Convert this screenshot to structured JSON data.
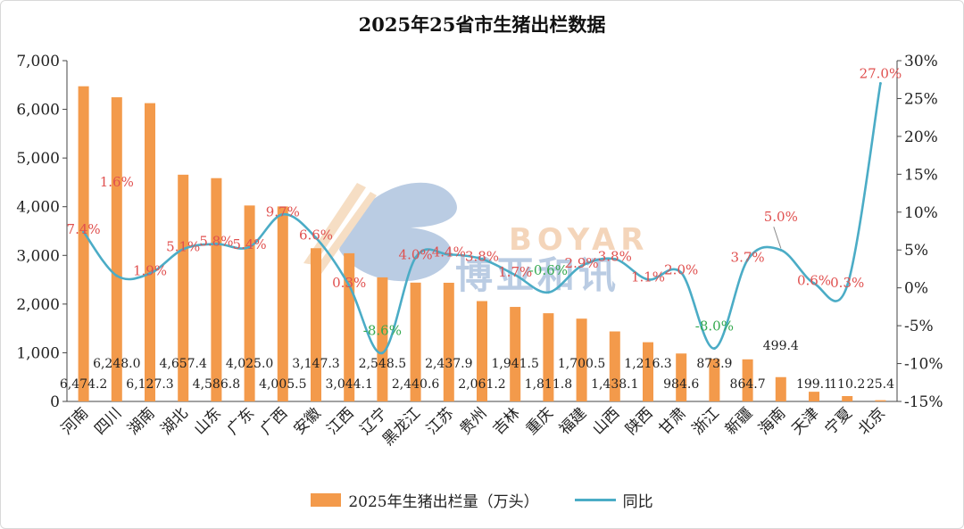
{
  "chart_data": {
    "type": "bar+line",
    "title": "2025年25省市生猪出栏数据",
    "categories": [
      "河南",
      "四川",
      "湖南",
      "湖北",
      "山东",
      "广东",
      "广西",
      "安徽",
      "江西",
      "辽宁",
      "黑龙江",
      "江苏",
      "贵州",
      "吉林",
      "重庆",
      "福建",
      "山西",
      "陕西",
      "甘肃",
      "浙江",
      "新疆",
      "海南",
      "天津",
      "宁夏",
      "北京"
    ],
    "series": [
      {
        "name": "2025年生猪出栏量（万头）",
        "type": "bar",
        "axis": "left",
        "color": "#F39A4B",
        "values": [
          6474.2,
          6248.0,
          6127.3,
          4657.4,
          4586.8,
          4025.0,
          4005.5,
          3147.3,
          3044.1,
          2548.5,
          2440.6,
          2437.9,
          2061.2,
          1941.5,
          1811.8,
          1700.5,
          1438.1,
          1216.3,
          984.6,
          873.9,
          864.7,
          499.4,
          199.1,
          110.2,
          25.4
        ],
        "labels": [
          "6,474.2",
          "6,248.0",
          "6,127.3",
          "4,657.4",
          "4,586.8",
          "4,025.0",
          "4,005.5",
          "3,147.3",
          "3,044.1",
          "2,548.5",
          "2,440.6",
          "2,437.9",
          "2,061.2",
          "1,941.5",
          "1,811.8",
          "1,700.5",
          "1,438.1",
          "1,216.3",
          "984.6",
          "873.9",
          "864.7",
          "499.4",
          "199.1",
          "110.2",
          "25.4"
        ]
      },
      {
        "name": "同比",
        "type": "line",
        "axis": "right",
        "color": "#4BACC6",
        "values": [
          7.4,
          1.6,
          1.9,
          5.1,
          5.8,
          5.4,
          9.7,
          6.6,
          0.3,
          -8.6,
          4.0,
          4.4,
          3.8,
          1.7,
          -0.6,
          2.9,
          3.8,
          1.1,
          2.0,
          -8.0,
          3.7,
          5.0,
          0.6,
          0.3,
          27.0
        ],
        "labels": [
          "7.4%",
          "1.6%",
          "1.9%",
          "5.1%",
          "5.8%",
          "5.4%",
          "9.7%",
          "6.6%",
          "0.3%",
          "-8.6%",
          "4.0%",
          "4.4%",
          "3.8%",
          "1.7%",
          "-0.6%",
          "2.9%",
          "3.8%",
          "1.1%",
          "2.0%",
          "-8.0%",
          "3.7%",
          "5.0%",
          "0.6%",
          "0.3%",
          "27.0%"
        ],
        "positive_label_color": "#E0504F",
        "negative_label_color": "#35A94F"
      }
    ],
    "y_left": {
      "min": 0,
      "max": 7000,
      "ticks": [
        "0",
        "1,000",
        "2,000",
        "3,000",
        "4,000",
        "5,000",
        "6,000",
        "7,000"
      ],
      "tick_values": [
        0,
        1000,
        2000,
        3000,
        4000,
        5000,
        6000,
        7000
      ]
    },
    "y_right": {
      "min": -15,
      "max": 30,
      "ticks": [
        "-15%",
        "-10%",
        "-5%",
        "0%",
        "5%",
        "10%",
        "15%",
        "20%",
        "25%",
        "30%"
      ],
      "tick_values": [
        -15,
        -10,
        -5,
        0,
        5,
        10,
        15,
        20,
        25,
        30
      ]
    },
    "grid": false,
    "legend_position": "bottom"
  },
  "legend": {
    "bar_label": "2025年生猪出栏量（万头）",
    "line_label": "同比"
  },
  "watermark": {
    "text_en": "BOYAR",
    "text_cn": "博亚和讯"
  }
}
